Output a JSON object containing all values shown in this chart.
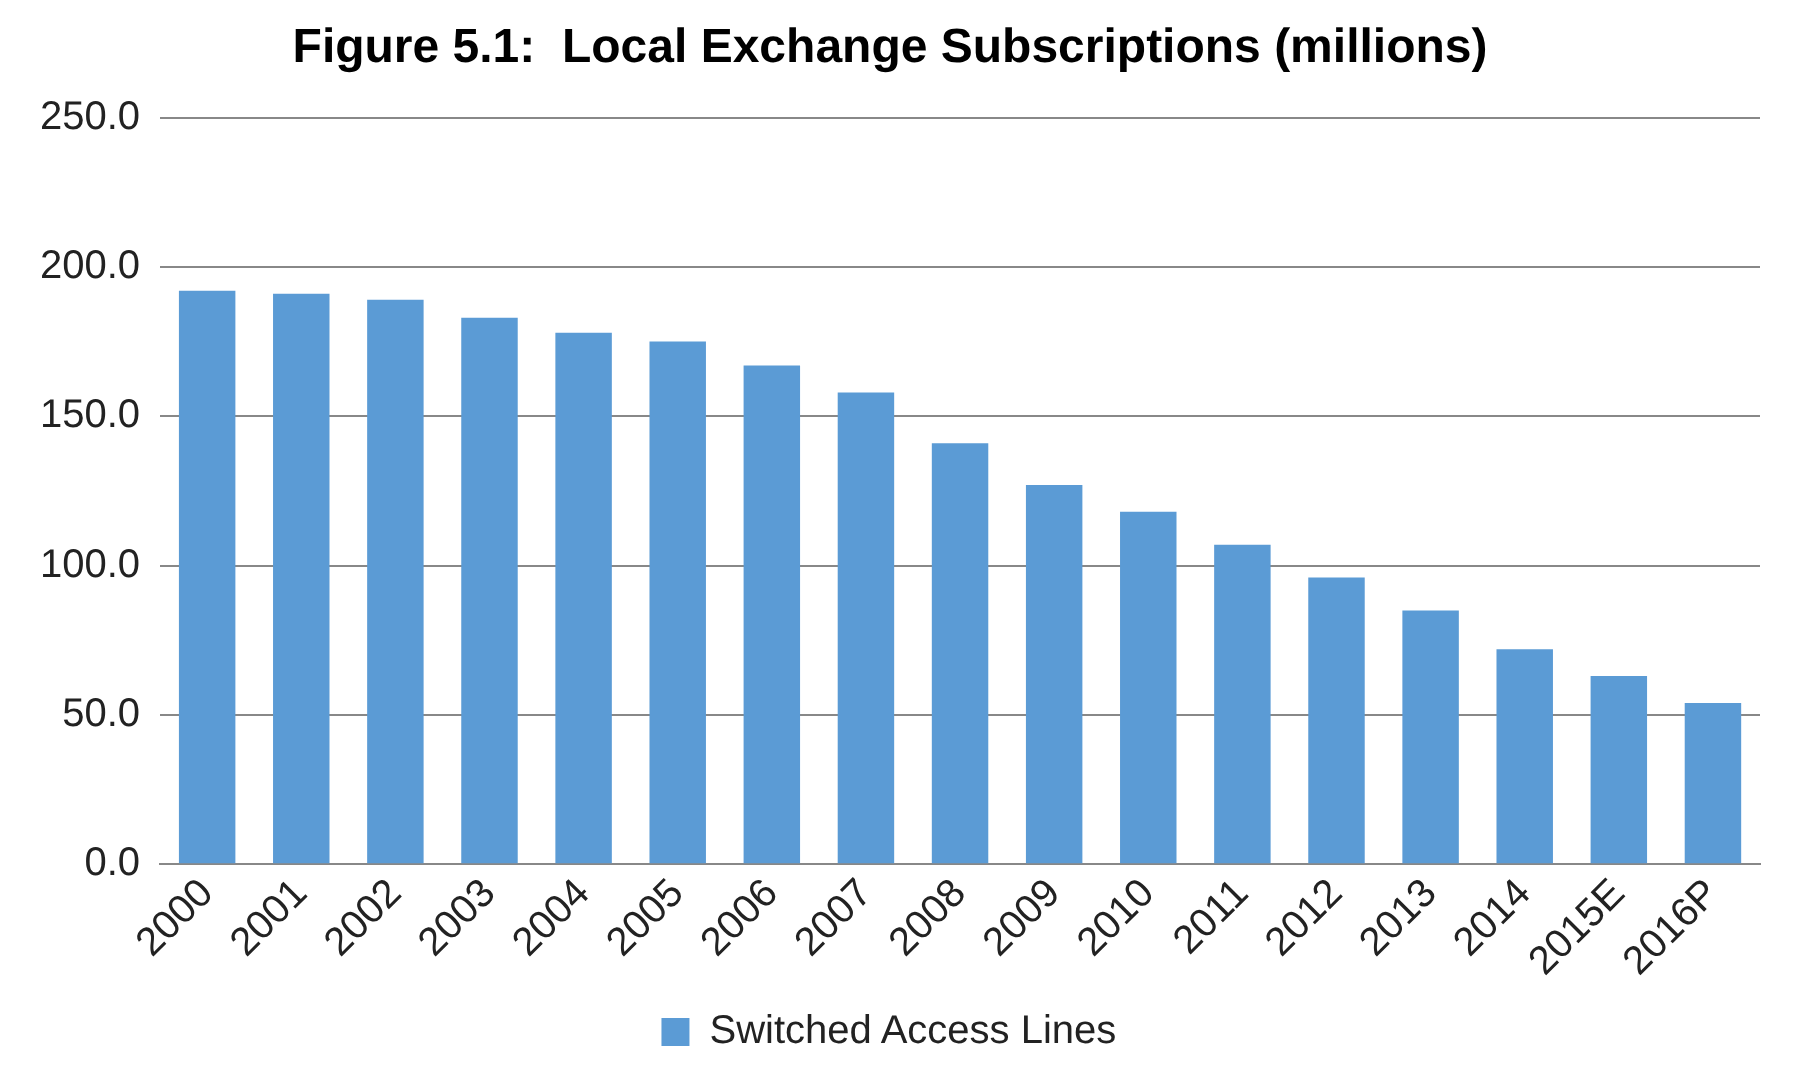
{
  "chart_data": {
    "type": "bar",
    "title": "Figure 5.1:  Local Exchange Subscriptions (millions)",
    "categories": [
      "2000",
      "2001",
      "2002",
      "2003",
      "2004",
      "2005",
      "2006",
      "2007",
      "2008",
      "2009",
      "2010",
      "2011",
      "2012",
      "2013",
      "2014",
      "2015E",
      "2016P"
    ],
    "series": [
      {
        "name": "Switched Access Lines",
        "color": "#5b9bd5",
        "values": [
          192,
          191,
          189,
          183,
          178,
          175,
          167,
          158,
          141,
          127,
          118,
          107,
          96,
          85,
          72,
          63,
          54
        ]
      }
    ],
    "ylim": [
      0,
      250
    ],
    "yticks": [
      {
        "value": 0,
        "label": "0.0"
      },
      {
        "value": 50,
        "label": "50.0"
      },
      {
        "value": 100,
        "label": "100.0"
      },
      {
        "value": 150,
        "label": "150.0"
      },
      {
        "value": 200,
        "label": "200.0"
      },
      {
        "value": 250,
        "label": "250.0"
      }
    ],
    "grid": "y",
    "legend": "bottom"
  }
}
